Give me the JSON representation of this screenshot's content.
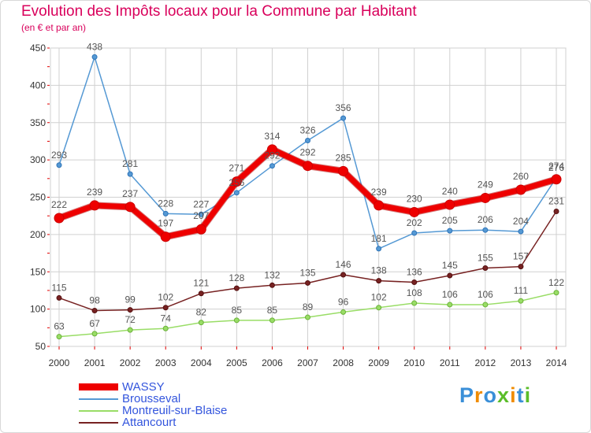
{
  "title": "Evolution des Impôts locaux pour la Commune par Habitant",
  "subtitle": "(en € et par an)",
  "logo_text": "Proxiti",
  "colors": {
    "title": "#d9005b",
    "grid": "#d0d0d0",
    "axis_ticks": "#e00000",
    "legend_text": "#3355dd"
  },
  "chart_data": {
    "type": "line",
    "title": "Evolution des Impôts locaux pour la Commune par Habitant",
    "subtitle": "(en € et par an)",
    "xlabel": "",
    "ylabel": "",
    "x": [
      "2000",
      "2001",
      "2002",
      "2003",
      "2004",
      "2005",
      "2006",
      "2007",
      "2008",
      "2009",
      "2010",
      "2011",
      "2012",
      "2013",
      "2014"
    ],
    "ylim": [
      50,
      450
    ],
    "yticks": [
      50,
      100,
      150,
      200,
      250,
      300,
      350,
      400,
      450
    ],
    "grid": true,
    "legend_position": "bottom-left",
    "series": [
      {
        "name": "WASSY",
        "color": "#ee0000",
        "values": [
          222,
          239,
          237,
          197,
          207,
          271,
          314,
          292,
          285,
          239,
          230,
          240,
          249,
          260,
          274
        ],
        "labels": [
          "222",
          "239",
          "237",
          "197",
          "207",
          "271",
          "314",
          "292",
          "285",
          "239",
          "230",
          "240",
          "249",
          "260",
          "274"
        ],
        "emphasized": true
      },
      {
        "name": "Brousseval",
        "color": "#5599d4",
        "values": [
          293,
          438,
          281,
          228,
          227,
          256,
          292,
          326,
          356,
          181,
          202,
          205,
          206,
          204,
          276
        ],
        "labels": [
          "293",
          "438",
          "281",
          "228",
          "227",
          "256",
          "292",
          "326",
          "356",
          "181",
          "202",
          "205",
          "206",
          "204",
          "276"
        ]
      },
      {
        "name": "Montreuil-sur-Blaise",
        "color": "#99dd66",
        "values": [
          63,
          67,
          72,
          74,
          82,
          85,
          85,
          89,
          96,
          102,
          108,
          106,
          106,
          111,
          122
        ],
        "labels": [
          "63",
          "67",
          "72",
          "74",
          "82",
          "85",
          "85",
          "89",
          "96",
          "102",
          "108",
          "106",
          "106",
          "111",
          "122"
        ]
      },
      {
        "name": "Attancourt",
        "color": "#772222",
        "values": [
          115,
          98,
          99,
          102,
          121,
          128,
          132,
          135,
          146,
          138,
          136,
          145,
          155,
          157,
          231
        ],
        "labels": [
          "115",
          "98",
          "99",
          "102",
          "121",
          "128",
          "132",
          "135",
          "146",
          "138",
          "136",
          "145",
          "155",
          "157",
          "231"
        ]
      }
    ]
  }
}
